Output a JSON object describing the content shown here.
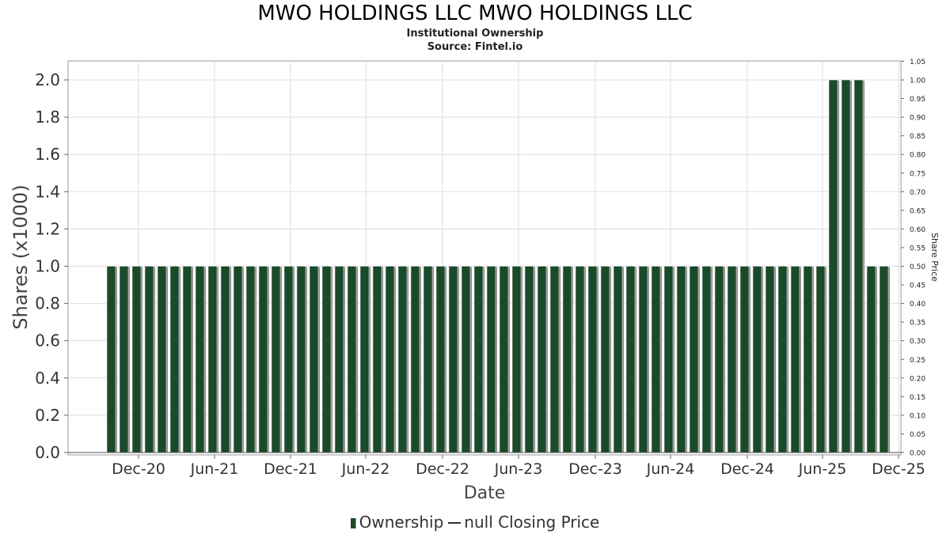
{
  "chart_data": {
    "type": "bar",
    "title": "MWO HOLDINGS LLC MWO HOLDINGS LLC",
    "subtitle1": "Institutional Ownership",
    "subtitle2": "Source: Fintel.io",
    "xlabel": "Date",
    "ylabel": "Shares (x1000)",
    "y2label": "Share Price",
    "ylim": [
      0,
      2.1
    ],
    "y2lim": [
      0,
      1.05
    ],
    "yticks": [
      "0.0",
      "0.2",
      "0.4",
      "0.6",
      "0.8",
      "1.0",
      "1.2",
      "1.4",
      "1.6",
      "1.8",
      "2.0"
    ],
    "y2ticks": [
      "0.00",
      "0.05",
      "0.10",
      "0.15",
      "0.20",
      "0.25",
      "0.30",
      "0.35",
      "0.40",
      "0.45",
      "0.50",
      "0.55",
      "0.60",
      "0.65",
      "0.70",
      "0.75",
      "0.80",
      "0.85",
      "0.90",
      "0.95",
      "1.00",
      "1.05"
    ],
    "xticks": [
      "Dec-20",
      "Jun-21",
      "Dec-21",
      "Jun-22",
      "Dec-22",
      "Jun-23",
      "Dec-23",
      "Jun-24",
      "Dec-24",
      "Jun-25",
      "Dec-25"
    ],
    "grid": true,
    "legend_position": "bottom",
    "colors": {
      "bar": "#1a4a28",
      "bar_shadow": "#8a8a8a",
      "grid": "#dddddd"
    },
    "series": [
      {
        "name": "Ownership",
        "values": [
          1,
          1,
          1,
          1,
          1,
          1,
          1,
          1,
          1,
          1,
          1,
          1,
          1,
          1,
          1,
          1,
          1,
          1,
          1,
          1,
          1,
          1,
          1,
          1,
          1,
          1,
          1,
          1,
          1,
          1,
          1,
          1,
          1,
          1,
          1,
          1,
          1,
          1,
          1,
          1,
          1,
          1,
          1,
          1,
          1,
          1,
          1,
          1,
          1,
          1,
          1,
          1,
          1,
          1,
          1,
          1,
          1,
          2,
          2,
          2,
          1,
          1
        ]
      }
    ],
    "legend": [
      "Ownership",
      "null Closing Price"
    ]
  }
}
